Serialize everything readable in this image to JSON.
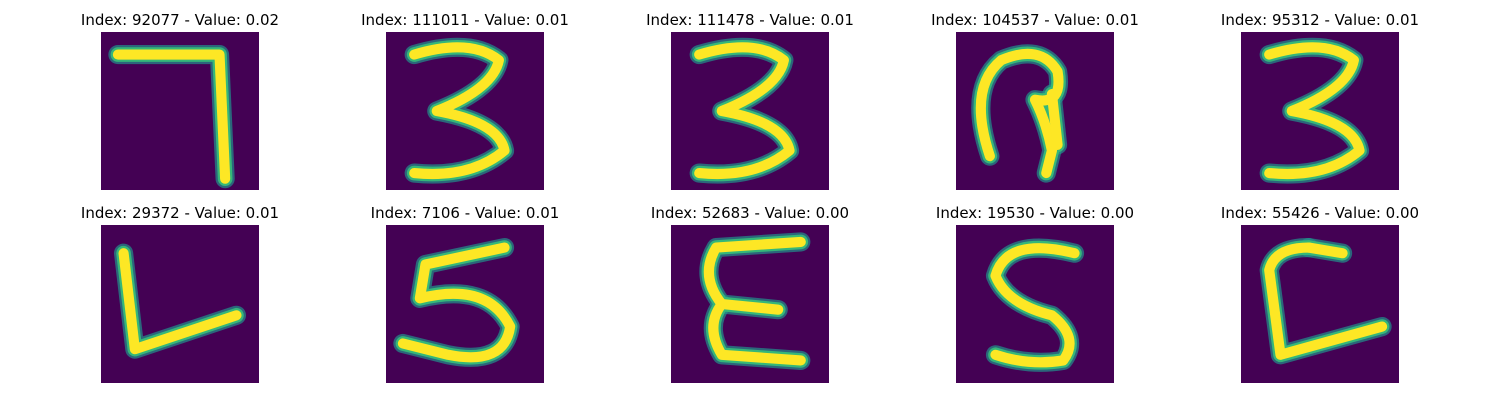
{
  "panels": [
    {
      "title": "Index: 92077 - Value: 0.02",
      "glyph": "seven-like",
      "index": 92077,
      "value": 0.02
    },
    {
      "title": "Index: 111011 - Value: 0.01",
      "glyph": "three",
      "index": 111011,
      "value": 0.01
    },
    {
      "title": "Index: 111478 - Value: 0.01",
      "glyph": "three",
      "index": 111478,
      "value": 0.01
    },
    {
      "title": "Index: 104537 - Value: 0.01",
      "glyph": "hook-shape",
      "index": 104537,
      "value": 0.01
    },
    {
      "title": "Index: 95312 - Value: 0.01",
      "glyph": "three",
      "index": 95312,
      "value": 0.01
    },
    {
      "title": "Index: 29372 - Value: 0.01",
      "glyph": "l-angle",
      "index": 29372,
      "value": 0.01
    },
    {
      "title": "Index: 7106 - Value: 0.01",
      "glyph": "five",
      "index": 7106,
      "value": 0.01
    },
    {
      "title": "Index: 52683 - Value: 0.00",
      "glyph": "e-shape",
      "index": 52683,
      "value": 0.0
    },
    {
      "title": "Index: 19530 - Value: 0.00",
      "glyph": "s-five",
      "index": 19530,
      "value": 0.0
    },
    {
      "title": "Index: 55426 - Value: 0.00",
      "glyph": "c-shape",
      "index": 55426,
      "value": 0.0
    }
  ],
  "colors": {
    "background": "#440154",
    "stroke_core": "#fde725",
    "stroke_edge": "#35b779",
    "stroke_outer": "#21918c"
  }
}
